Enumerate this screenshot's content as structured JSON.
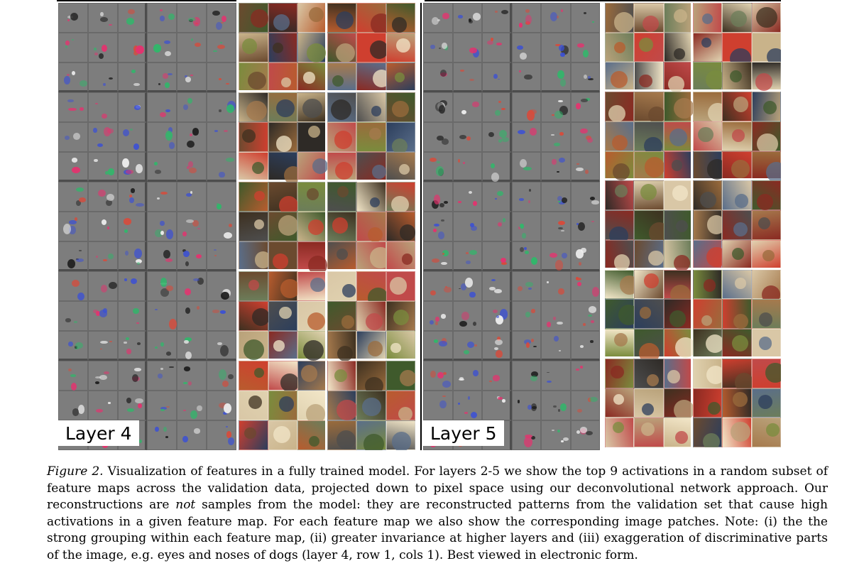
{
  "figure": {
    "layer4_label": "Layer 4",
    "layer5_label": "Layer 5",
    "caption": {
      "label": "Figure 2.",
      "text_before_em": " Visualization of features in a fully trained model. For layers 2-5 we show the top 9 activations in a random subset of feature maps across the validation data, projected down to pixel space using our deconvolutional network approach. Our reconstructions are ",
      "em": "not",
      "text_after_em": " samples from the model: they are reconstructed patterns from the validation set that cause high activations in a given feature map. For each feature map we also show the corresponding image patches. Note: (i) the the strong grouping within each feature map, (ii) greater invariance at higher layers and (iii) exaggeration of discriminative parts of the image, e.g. eyes and noses of dogs (layer 4, row 1, cols 1). Best viewed in electronic form."
    }
  },
  "colors": {
    "deconv_gray": "#7d7d7d",
    "block_separator_dark": "#4d4d4d",
    "mark_colors": [
      "#e8306e",
      "#3a4fd6",
      "#2fb86a",
      "#f0f0f0",
      "#1e1e1e",
      "#d94a3a"
    ],
    "patch_palette": [
      "#6b4a2f",
      "#a67a4d",
      "#3f5a2c",
      "#c9b38a",
      "#8a2a22",
      "#2c3e5c",
      "#b85c2e",
      "#d9c7a6",
      "#4e4e4e",
      "#7a8c3d",
      "#c04a4a",
      "#e0d2b0",
      "#5a6e8a",
      "#9a6b3c",
      "#2e2a26",
      "#b9a27a",
      "#cf3f2f",
      "#6c7d5a",
      "#f2e6c8",
      "#3d3020"
    ]
  }
}
